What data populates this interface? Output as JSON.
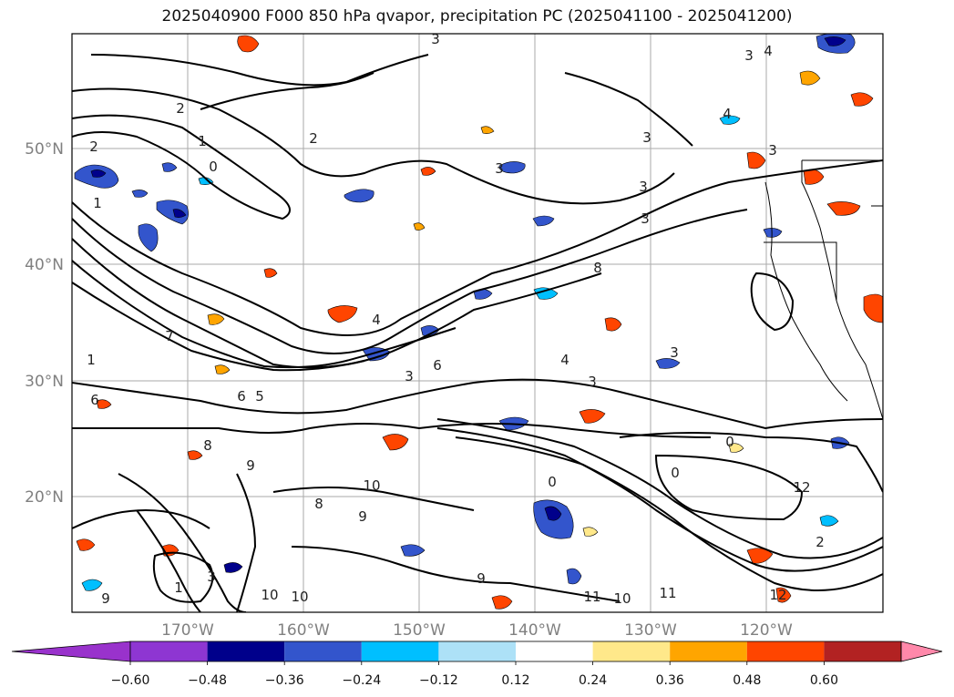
{
  "title": "2025040900 F000 850 hPa qvapor, precipitation PC (2025041100 - 2025041200)",
  "map": {
    "lon_ticks": [
      "170°W",
      "160°W",
      "150°W",
      "140°W",
      "130°W",
      "120°W"
    ],
    "lat_ticks": [
      "50°N",
      "40°N",
      "30°N",
      "20°N"
    ],
    "contour_labels": [
      "3",
      "3",
      "2",
      "2",
      "1",
      "0",
      "2",
      "1",
      "3",
      "3",
      "3",
      "3",
      "4",
      "4",
      "3",
      "3",
      "4",
      "8",
      "7",
      "1",
      "3",
      "6",
      "6",
      "5",
      "6",
      "4",
      "3",
      "8",
      "9",
      "10",
      "9",
      "10",
      "8",
      "0",
      "0",
      "9",
      "11",
      "10",
      "12",
      "11",
      "10",
      "9",
      "12",
      "3",
      "2",
      "1",
      "0"
    ]
  },
  "colorbar": {
    "ticks": [
      "−0.60",
      "−0.48",
      "−0.36",
      "−0.24",
      "−0.12",
      "0.12",
      "0.24",
      "0.36",
      "0.48",
      "0.60"
    ],
    "colors": [
      "#9932CC",
      "#8E36D2",
      "#00008B",
      "#3355CC",
      "#00BFFF",
      "#ADE1F7",
      "#FFFFFF",
      "#FFE88A",
      "#FFA500",
      "#FF4500",
      "#B22222",
      "#FF88AA"
    ]
  }
}
